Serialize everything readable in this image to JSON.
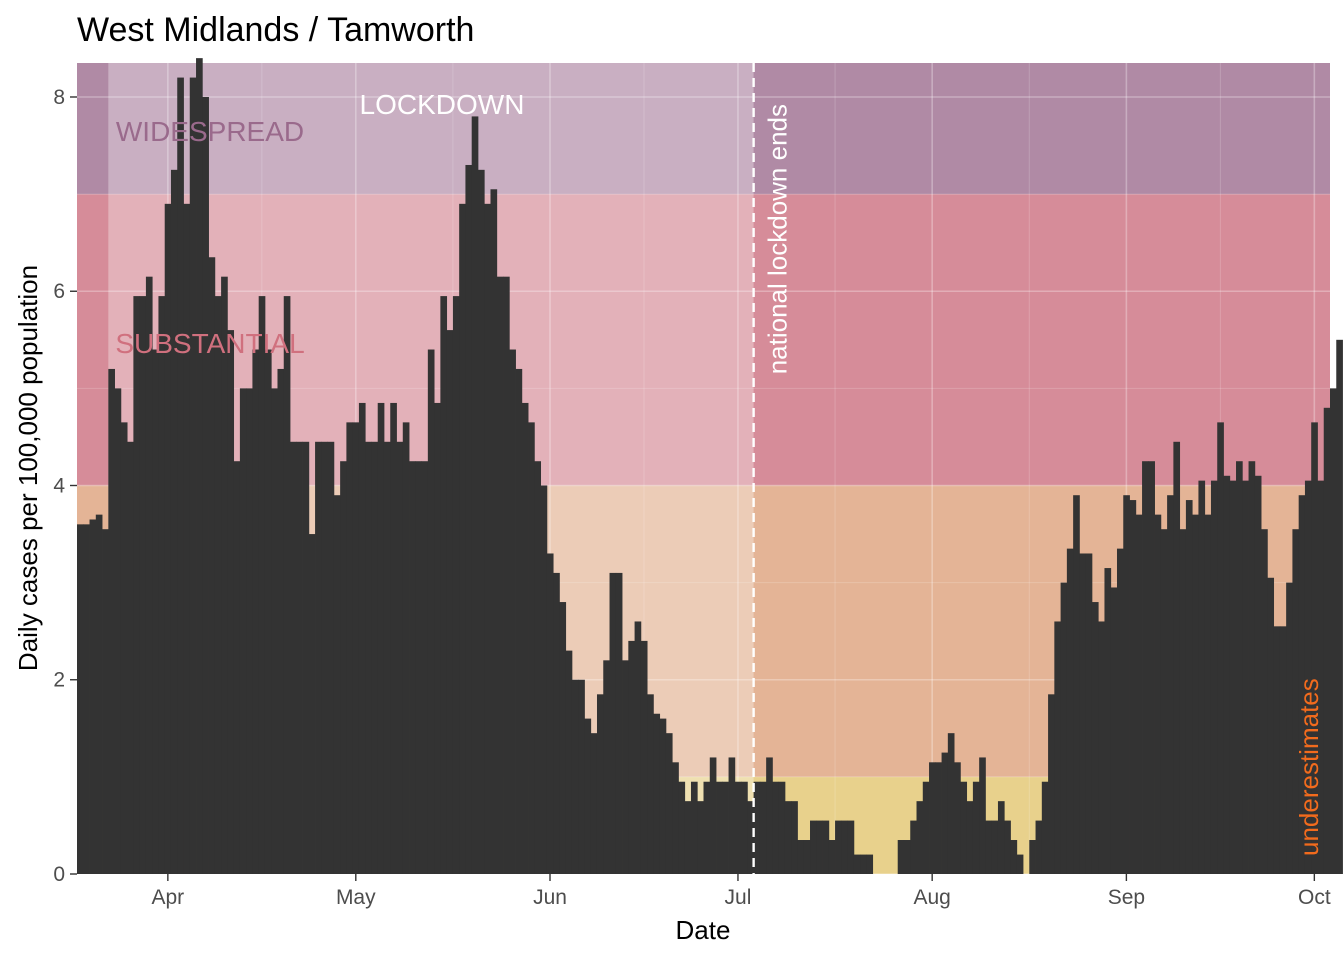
{
  "chart_data": {
    "type": "bar",
    "title": "West Midlands / Tamworth",
    "xlabel": "Date",
    "ylabel": "Daily cases per 100,000 population",
    "x_start": "2020-03-18",
    "xlim": [
      "2020-03-18",
      "2020-10-03"
    ],
    "ylim": [
      0,
      8.35
    ],
    "yticks": [
      0,
      2,
      4,
      6,
      8
    ],
    "xticks": [
      {
        "label": "Apr",
        "date": "2020-04-01"
      },
      {
        "label": "May",
        "date": "2020-05-01"
      },
      {
        "label": "Jun",
        "date": "2020-06-01"
      },
      {
        "label": "Jul",
        "date": "2020-07-01"
      },
      {
        "label": "Aug",
        "date": "2020-08-01"
      },
      {
        "label": "Sep",
        "date": "2020-09-01"
      },
      {
        "label": "Oct",
        "date": "2020-10-01"
      }
    ],
    "bands": [
      {
        "label": "",
        "from": 0,
        "to": 1,
        "color": "#e8d18c"
      },
      {
        "label": "",
        "from": 1,
        "to": 4,
        "color": "#e4b496"
      },
      {
        "label": "SUBSTANTIAL",
        "from": 4,
        "to": 7,
        "color": "#d68c99",
        "label_color": "#d0707e"
      },
      {
        "label": "WIDESPREAD",
        "from": 7,
        "to": 8.35,
        "color": "#b08aa5",
        "label_color": "#9a6a8c"
      }
    ],
    "lockdown": {
      "label": "LOCKDOWN",
      "from": "2020-03-23",
      "to": "2020-07-04"
    },
    "lockdown_end": {
      "label": "national lockdown ends",
      "date": "2020-07-04"
    },
    "underestimates_label": "underestimates",
    "values": [
      3.6,
      3.6,
      3.65,
      3.7,
      3.55,
      5.2,
      5.0,
      4.65,
      4.45,
      5.95,
      5.95,
      6.15,
      5.4,
      5.95,
      6.9,
      7.25,
      8.2,
      6.9,
      8.2,
      8.4,
      8.0,
      6.35,
      5.95,
      6.15,
      5.6,
      4.25,
      5.0,
      5.0,
      5.4,
      5.95,
      5.4,
      5.0,
      5.2,
      5.95,
      4.45,
      4.45,
      4.45,
      3.5,
      4.45,
      4.45,
      4.45,
      3.9,
      4.25,
      4.65,
      4.65,
      4.85,
      4.45,
      4.45,
      4.85,
      4.45,
      4.85,
      4.45,
      4.65,
      4.25,
      4.25,
      4.25,
      5.4,
      4.85,
      5.95,
      5.6,
      5.95,
      6.9,
      7.3,
      7.8,
      7.25,
      6.9,
      7.05,
      6.15,
      6.15,
      5.4,
      5.2,
      4.85,
      4.65,
      4.25,
      4.0,
      3.3,
      3.1,
      2.8,
      2.3,
      2.0,
      2.0,
      1.6,
      1.45,
      1.85,
      2.2,
      3.1,
      3.1,
      2.2,
      2.4,
      2.6,
      2.4,
      1.85,
      1.65,
      1.6,
      1.45,
      1.15,
      0.95,
      0.75,
      0.95,
      0.75,
      0.95,
      1.2,
      0.95,
      0.95,
      1.2,
      0.95,
      0.95,
      0.75,
      0.95,
      0.95,
      1.2,
      0.95,
      0.95,
      0.75,
      0.75,
      0.35,
      0.35,
      0.55,
      0.55,
      0.55,
      0.35,
      0.55,
      0.55,
      0.55,
      0.2,
      0.2,
      0.2,
      0.0,
      0.0,
      0.0,
      0.0,
      0.35,
      0.35,
      0.55,
      0.75,
      0.95,
      1.15,
      1.15,
      1.25,
      1.45,
      1.15,
      0.95,
      0.75,
      0.95,
      1.2,
      0.55,
      0.55,
      0.75,
      0.55,
      0.35,
      0.2,
      0.0,
      0.35,
      0.55,
      0.95,
      1.85,
      2.6,
      3.0,
      3.35,
      3.9,
      3.3,
      3.3,
      2.8,
      2.6,
      3.15,
      2.95,
      3.35,
      3.9,
      3.85,
      3.7,
      4.25,
      4.25,
      3.7,
      3.55,
      3.9,
      4.45,
      3.55,
      3.85,
      3.7,
      4.05,
      3.7,
      4.05,
      4.65,
      4.1,
      4.05,
      4.25,
      4.05,
      4.25,
      4.1,
      3.55,
      3.05,
      2.55,
      2.55,
      3.0,
      3.55,
      3.9,
      4.05,
      4.65,
      4.05,
      4.8,
      5.0,
      5.5
    ]
  }
}
